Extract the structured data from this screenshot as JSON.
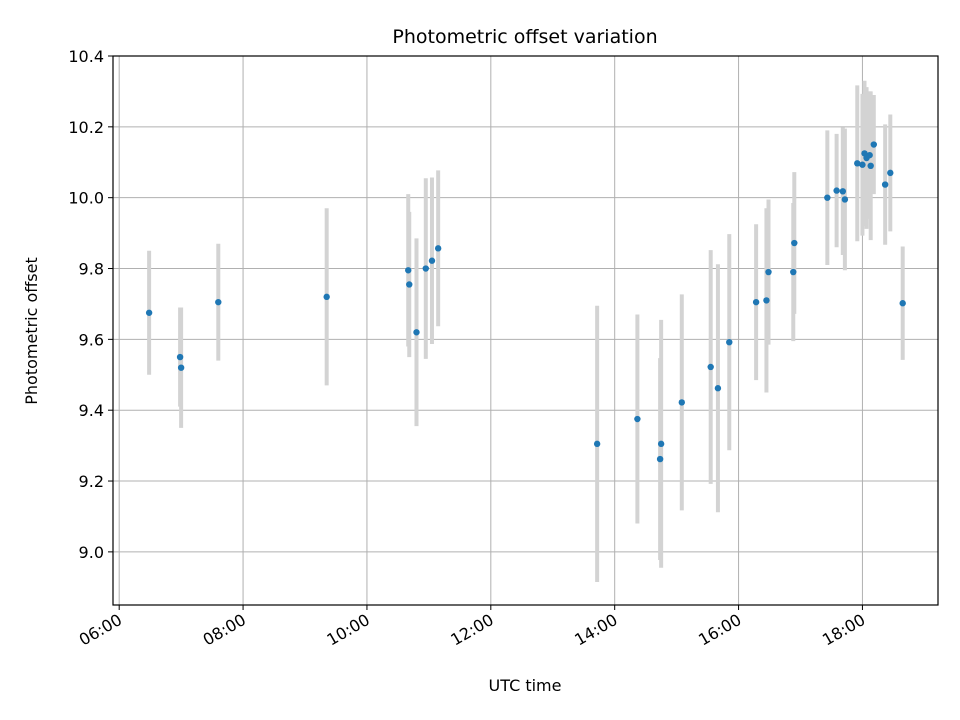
{
  "chart_data": {
    "type": "scatter",
    "title": "Photometric offset variation",
    "xlabel": "UTC time",
    "ylabel": "Photometric offset",
    "grid": true,
    "xlim_hours": [
      5.9,
      19.22
    ],
    "ylim": [
      8.85,
      10.4
    ],
    "x_ticks": [
      "06:00",
      "08:00",
      "10:00",
      "12:00",
      "14:00",
      "16:00",
      "18:00"
    ],
    "y_ticks": [
      "9.0",
      "9.2",
      "9.4",
      "9.6",
      "9.8",
      "10.0",
      "10.2",
      "10.4"
    ],
    "point_color": "#1f77b4",
    "errorbar_color": "#d3d3d3",
    "series": [
      {
        "points": [
          {
            "x": "06:29",
            "y": 9.675,
            "err": 0.175
          },
          {
            "x": "06:59",
            "y": 9.55,
            "err": 0.14
          },
          {
            "x": "07:00",
            "y": 9.52,
            "err": 0.17
          },
          {
            "x": "07:36",
            "y": 9.705,
            "err": 0.165
          },
          {
            "x": "09:21",
            "y": 9.72,
            "err": 0.25
          },
          {
            "x": "10:40",
            "y": 9.795,
            "err": 0.215
          },
          {
            "x": "10:41",
            "y": 9.755,
            "err": 0.205
          },
          {
            "x": "10:48",
            "y": 9.62,
            "err": 0.265
          },
          {
            "x": "10:57",
            "y": 9.8,
            "err": 0.255
          },
          {
            "x": "11:03",
            "y": 9.822,
            "err": 0.235
          },
          {
            "x": "11:09",
            "y": 9.857,
            "err": 0.22
          },
          {
            "x": "13:43",
            "y": 9.305,
            "err": 0.39
          },
          {
            "x": "14:22",
            "y": 9.375,
            "err": 0.295
          },
          {
            "x": "14:44",
            "y": 9.262,
            "err": 0.285
          },
          {
            "x": "14:45",
            "y": 9.305,
            "err": 0.35
          },
          {
            "x": "15:05",
            "y": 9.422,
            "err": 0.305
          },
          {
            "x": "15:33",
            "y": 9.522,
            "err": 0.33
          },
          {
            "x": "15:40",
            "y": 9.462,
            "err": 0.35
          },
          {
            "x": "15:51",
            "y": 9.592,
            "err": 0.305
          },
          {
            "x": "16:17",
            "y": 9.705,
            "err": 0.22
          },
          {
            "x": "16:27",
            "y": 9.71,
            "err": 0.26
          },
          {
            "x": "16:29",
            "y": 9.79,
            "err": 0.205
          },
          {
            "x": "16:53",
            "y": 9.79,
            "err": 0.195
          },
          {
            "x": "16:54",
            "y": 9.872,
            "err": 0.2
          },
          {
            "x": "17:26",
            "y": 10.0,
            "err": 0.19
          },
          {
            "x": "17:35",
            "y": 10.02,
            "err": 0.16
          },
          {
            "x": "17:41",
            "y": 10.018,
            "err": 0.18
          },
          {
            "x": "17:43",
            "y": 9.995,
            "err": 0.2
          },
          {
            "x": "17:55",
            "y": 10.097,
            "err": 0.22
          },
          {
            "x": "18:00",
            "y": 10.093,
            "err": 0.2
          },
          {
            "x": "18:02",
            "y": 10.125,
            "err": 0.205
          },
          {
            "x": "18:04",
            "y": 10.112,
            "err": 0.2
          },
          {
            "x": "18:07",
            "y": 10.12,
            "err": 0.18
          },
          {
            "x": "18:08",
            "y": 10.09,
            "err": 0.21
          },
          {
            "x": "18:11",
            "y": 10.15,
            "err": 0.14
          },
          {
            "x": "18:22",
            "y": 10.037,
            "err": 0.17
          },
          {
            "x": "18:27",
            "y": 10.07,
            "err": 0.165
          },
          {
            "x": "18:39",
            "y": 9.702,
            "err": 0.16
          }
        ]
      }
    ]
  }
}
